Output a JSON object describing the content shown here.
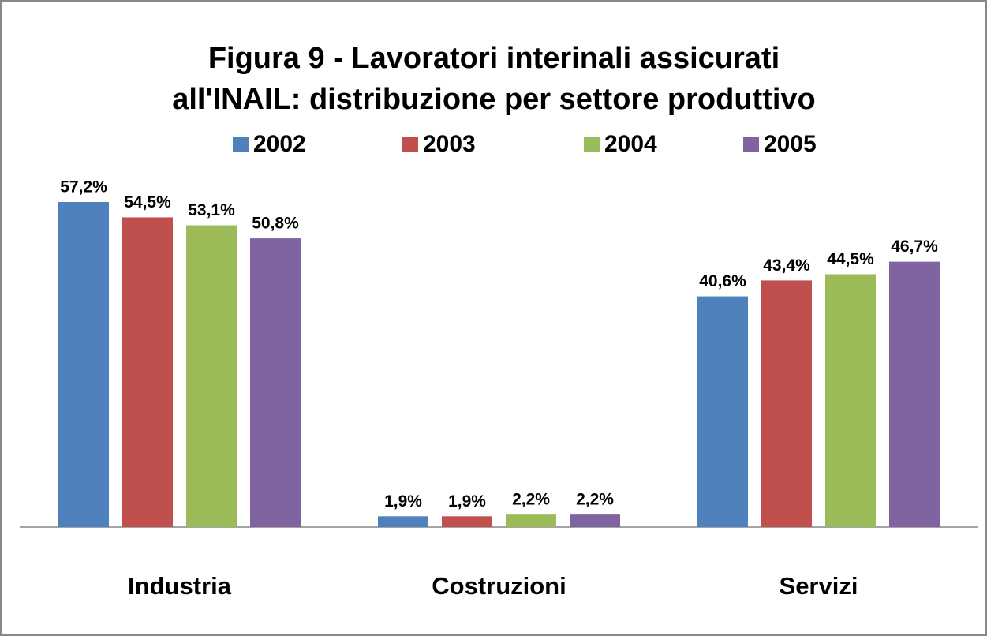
{
  "chart_data": {
    "type": "bar",
    "title": [
      "Figura 9 - Lavoratori interinali assicurati",
      "all'INAIL: distribuzione per settore produttivo"
    ],
    "categories": [
      "Industria",
      "Costruzioni",
      "Servizi"
    ],
    "series": [
      {
        "name": "2002",
        "color": "#4f81bd",
        "values": [
          57.2,
          1.9,
          40.6
        ],
        "value_labels": [
          "57,2%",
          "1,9%",
          "40,6%"
        ]
      },
      {
        "name": "2003",
        "color": "#c0504d",
        "values": [
          54.5,
          1.9,
          43.4
        ],
        "value_labels": [
          "54,5%",
          "1,9%",
          "43,4%"
        ]
      },
      {
        "name": "2004",
        "color": "#9bbb59",
        "values": [
          53.1,
          2.2,
          44.5
        ],
        "value_labels": [
          "53,1%",
          "2,2%",
          "44,5%"
        ]
      },
      {
        "name": "2005",
        "color": "#8064a2",
        "values": [
          50.8,
          2.2,
          46.7
        ],
        "value_labels": [
          "50,8%",
          "2,2%",
          "46,7%"
        ]
      }
    ],
    "legend": "top"
  }
}
